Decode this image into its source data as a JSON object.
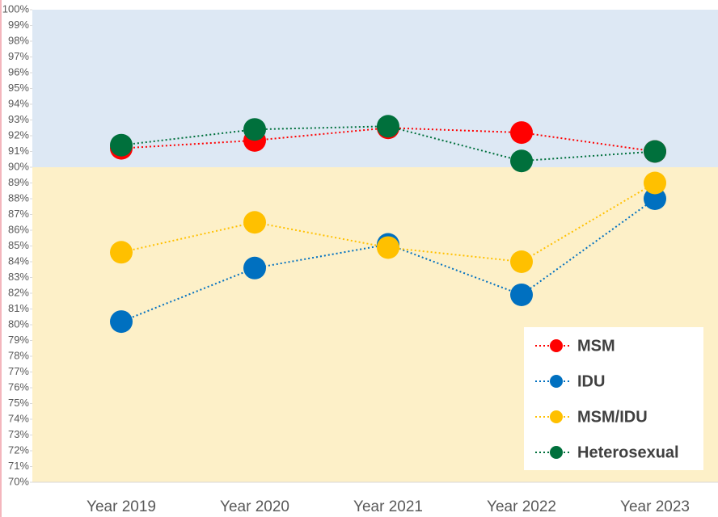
{
  "chart_data": {
    "type": "line",
    "categories": [
      "Year 2019",
      "Year 2020",
      "Year 2021",
      "Year 2022",
      "Year 2023"
    ],
    "series": [
      {
        "name": "MSM",
        "color": "#ff0000",
        "values": [
          91.2,
          91.7,
          92.5,
          92.2,
          91.0
        ]
      },
      {
        "name": "IDU",
        "color": "#0070c0",
        "values": [
          80.2,
          83.6,
          85.1,
          81.9,
          88.0
        ]
      },
      {
        "name": "MSM/IDU",
        "color": "#ffc000",
        "values": [
          84.6,
          86.5,
          84.9,
          84.0,
          89.0
        ]
      },
      {
        "name": "Heterosexual",
        "color": "#00703c",
        "values": [
          91.4,
          92.4,
          92.6,
          90.4,
          91.0
        ]
      }
    ],
    "ylim": [
      70,
      100
    ],
    "yticks": [
      {
        "value": 70,
        "label": "70%"
      },
      {
        "value": 71,
        "label": "71%"
      },
      {
        "value": 72,
        "label": "72%"
      },
      {
        "value": 73,
        "label": "73%"
      },
      {
        "value": 74,
        "label": "74%"
      },
      {
        "value": 75,
        "label": "75%"
      },
      {
        "value": 76,
        "label": "76%"
      },
      {
        "value": 77,
        "label": "77%"
      },
      {
        "value": 78,
        "label": "78%"
      },
      {
        "value": 79,
        "label": "79%"
      },
      {
        "value": 80,
        "label": "80%"
      },
      {
        "value": 81,
        "label": "81%"
      },
      {
        "value": 82,
        "label": "82%"
      },
      {
        "value": 83,
        "label": "83%"
      },
      {
        "value": 84,
        "label": "84%"
      },
      {
        "value": 85,
        "label": "85%"
      },
      {
        "value": 86,
        "label": "86%"
      },
      {
        "value": 87,
        "label": "87%"
      },
      {
        "value": 88,
        "label": "88%"
      },
      {
        "value": 89,
        "label": "89%"
      },
      {
        "value": 90,
        "label": "90%"
      },
      {
        "value": 91,
        "label": "91%"
      },
      {
        "value": 92,
        "label": "92%"
      },
      {
        "value": 93,
        "label": "93%"
      },
      {
        "value": 94,
        "label": "94%"
      },
      {
        "value": 95,
        "label": "95%"
      },
      {
        "value": 96,
        "label": "96%"
      },
      {
        "value": 97,
        "label": "97%"
      },
      {
        "value": 98,
        "label": "98%"
      },
      {
        "value": 99,
        "label": "99%"
      },
      {
        "value": 100,
        "label": "100%"
      }
    ],
    "bands": [
      {
        "from": 90,
        "to": 100,
        "color": "#dde8f4"
      },
      {
        "from": 70,
        "to": 90,
        "color": "#fdf0c8"
      }
    ],
    "legend": "bottom-right"
  }
}
